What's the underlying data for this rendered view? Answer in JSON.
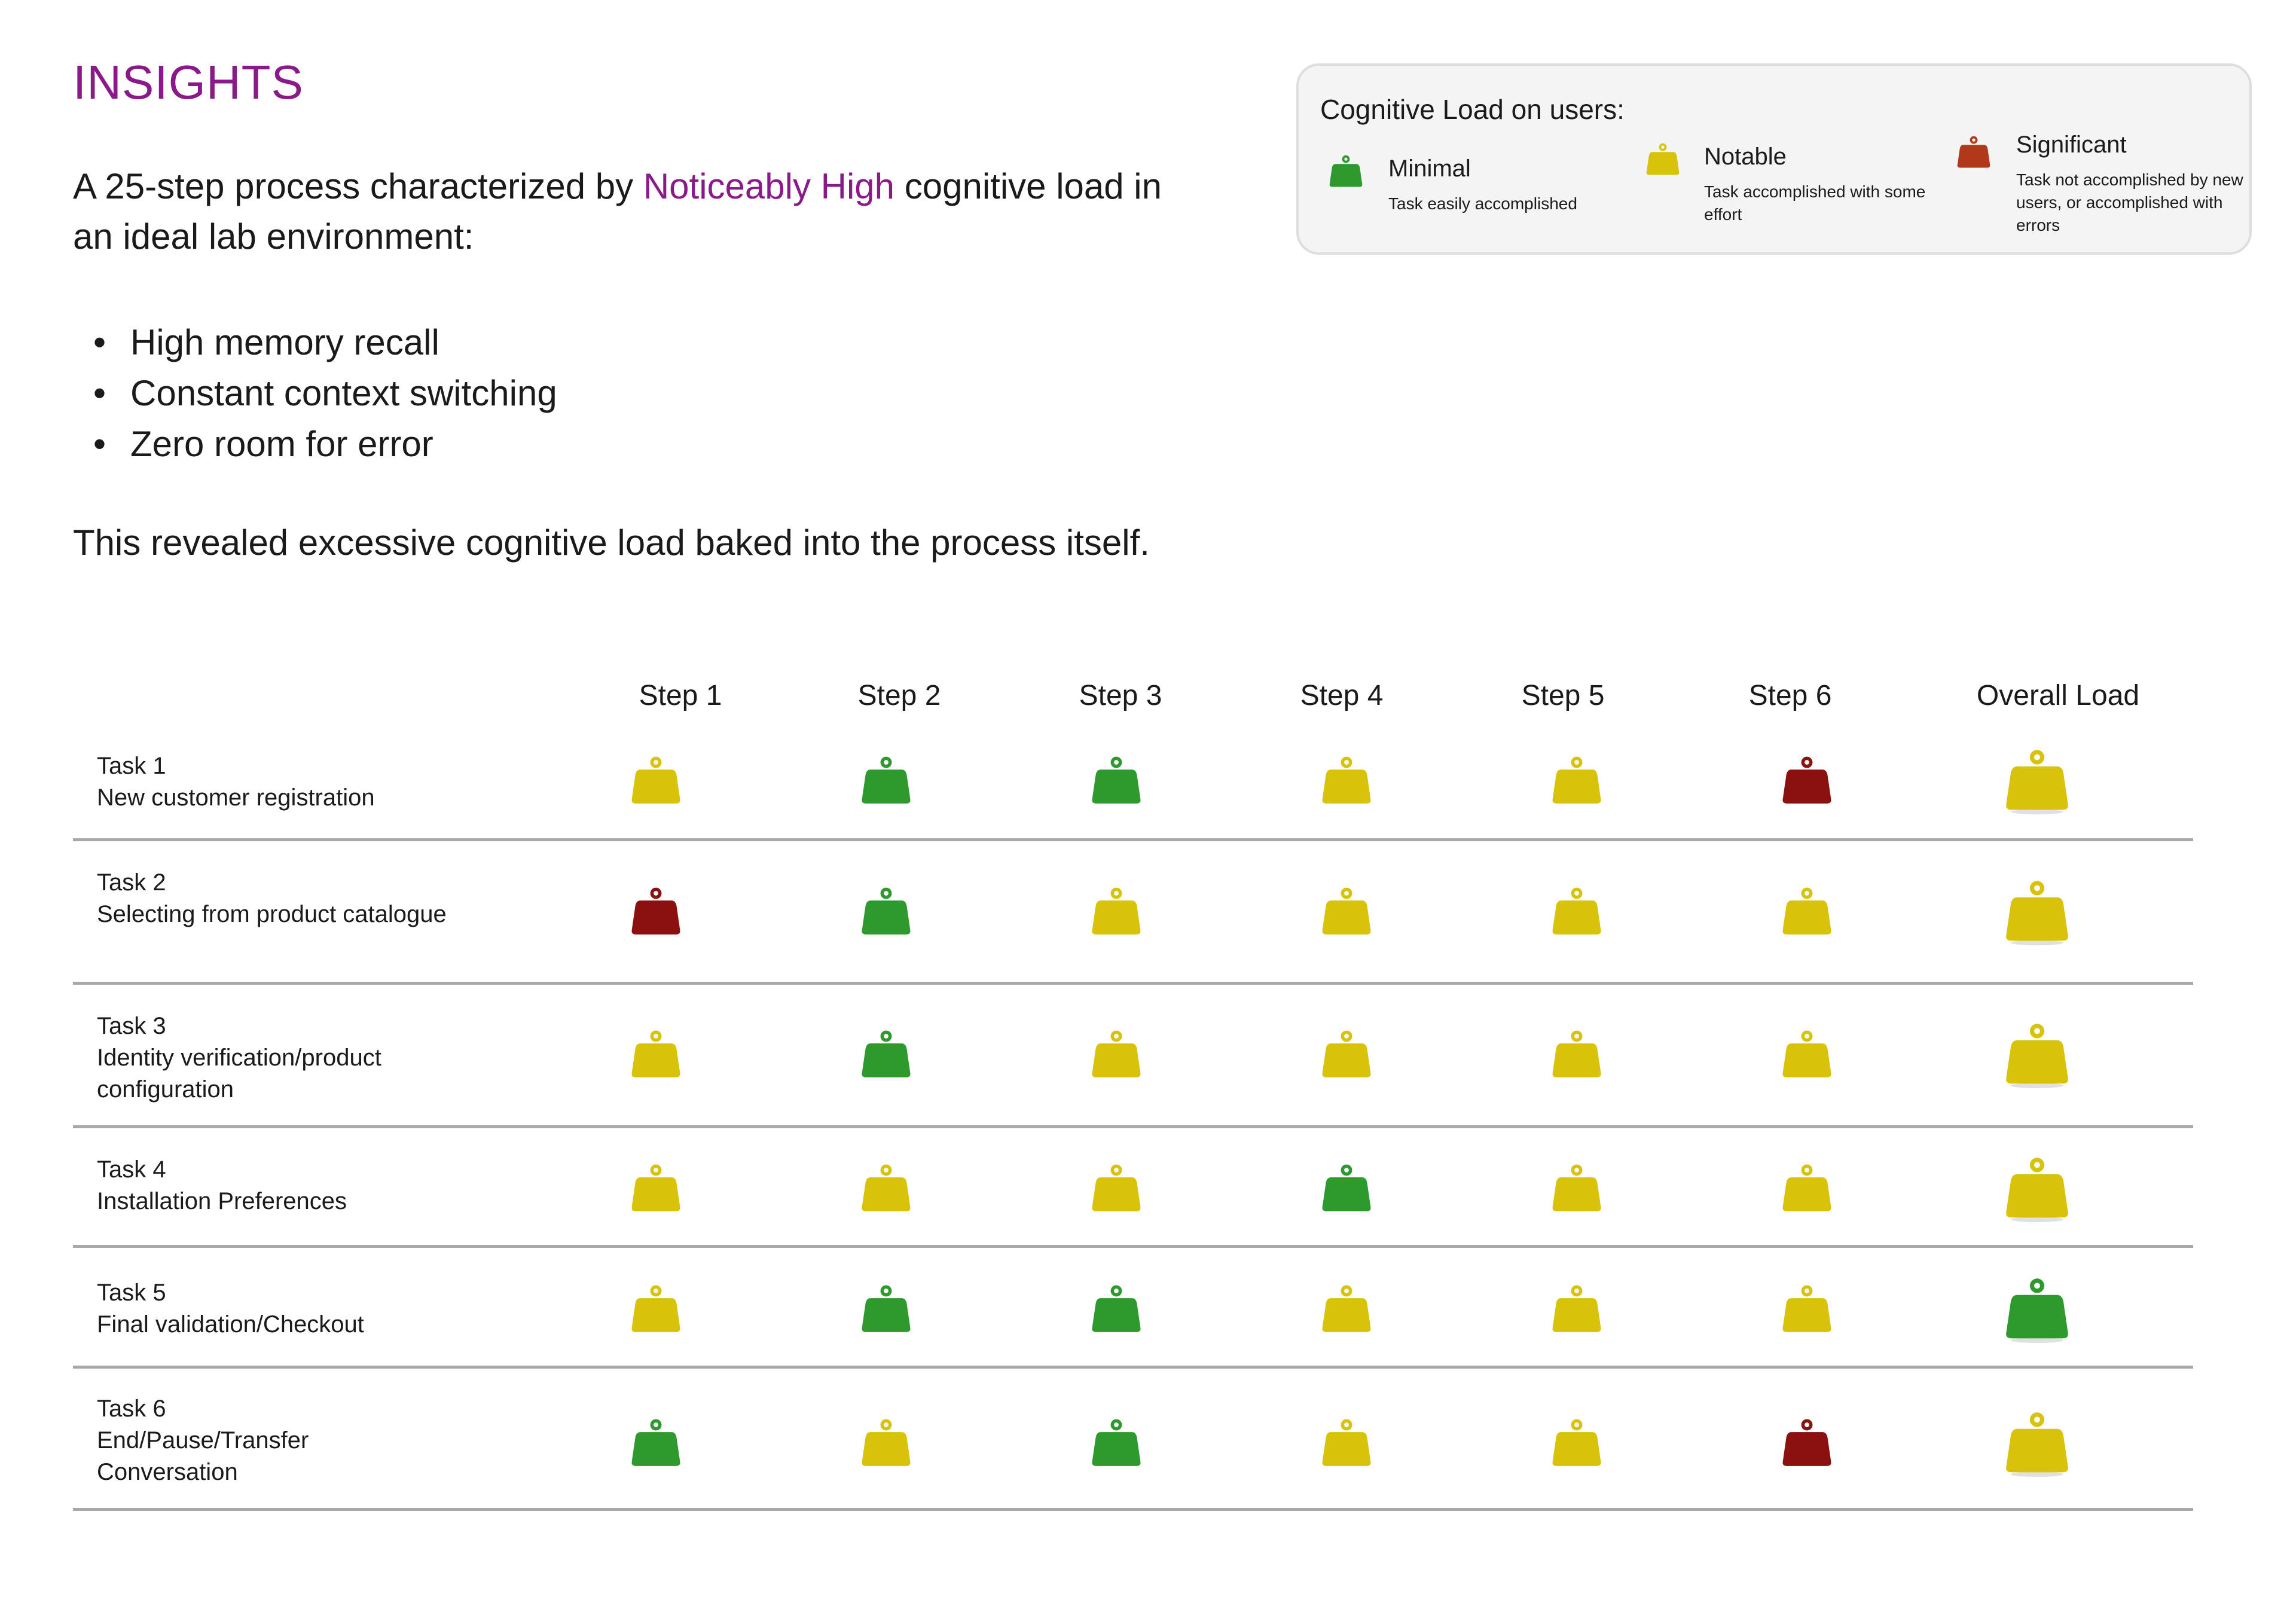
{
  "header": {
    "title": "INSIGHTS"
  },
  "intro": {
    "before": "A 25-step process characterized by ",
    "highlight": "Noticeably High",
    "after": " cognitive load in an ideal lab environment:"
  },
  "bullets": [
    "High memory recall",
    "Constant context switching",
    "Zero room for error"
  ],
  "conclusion": "This revealed excessive cognitive load baked into the process itself.",
  "legend": {
    "title": "Cognitive Load on users:",
    "items": [
      {
        "key": "minimal",
        "label": "Minimal",
        "description": "Task easily accomplished",
        "color": "#2e9a2e",
        "icon": "weight-icon"
      },
      {
        "key": "notable",
        "label": "Notable",
        "description": "Task accomplished with some effort",
        "color": "#d9c20a",
        "icon": "weight-icon"
      },
      {
        "key": "significant",
        "label": "Significant",
        "description": "Task not accomplished by new users, or accomplished with errors",
        "color": "#8b1010",
        "icon": "weight-icon"
      }
    ]
  },
  "colors": {
    "minimal": "#2e9a2e",
    "notable": "#d9c20a",
    "significant": "#8b1010",
    "significant_legend": "#b2381c",
    "accent": "#8a1a8a"
  },
  "table": {
    "columns": [
      "Step 1",
      "Step 2",
      "Step 3",
      "Step 4",
      "Step 5",
      "Step 6",
      "Overall Load"
    ],
    "rows": [
      {
        "task": "Task 1",
        "description": "New customer registration",
        "steps": [
          "notable",
          "minimal",
          "minimal",
          "notable",
          "notable",
          "significant"
        ],
        "overall": "notable"
      },
      {
        "task": "Task 2",
        "description": "Selecting from product catalogue",
        "steps": [
          "significant",
          "minimal",
          "notable",
          "notable",
          "notable",
          "notable"
        ],
        "overall": "notable"
      },
      {
        "task": "Task 3",
        "description": "Identity verification/product configuration",
        "steps": [
          "notable",
          "minimal",
          "notable",
          "notable",
          "notable",
          "notable"
        ],
        "overall": "notable"
      },
      {
        "task": "Task 4",
        "description": "Installation Preferences",
        "steps": [
          "notable",
          "notable",
          "notable",
          "minimal",
          "notable",
          "notable"
        ],
        "overall": "notable"
      },
      {
        "task": "Task 5",
        "description": "Final validation/Checkout",
        "steps": [
          "notable",
          "minimal",
          "minimal",
          "notable",
          "notable",
          "notable"
        ],
        "overall": "minimal"
      },
      {
        "task": "Task 6",
        "description": "End/Pause/Transfer Conversation",
        "steps": [
          "minimal",
          "notable",
          "minimal",
          "notable",
          "notable",
          "significant"
        ],
        "overall": "notable"
      }
    ]
  }
}
